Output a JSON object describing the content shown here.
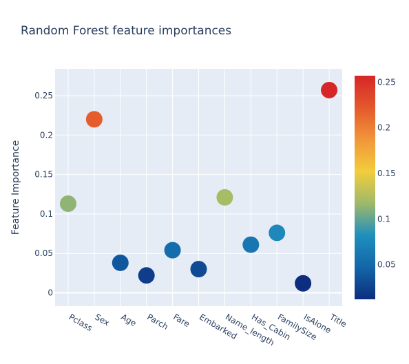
{
  "chart_data": {
    "type": "scatter",
    "title": "Random Forest feature importances",
    "ylabel": "Feature Importance",
    "xlabel": "",
    "categories": [
      "Pclass",
      "Sex",
      "Age",
      "Parch",
      "Fare",
      "Embarked",
      "Name_length",
      "Has_Cabin",
      "FamilySize",
      "IsAlone",
      "Title"
    ],
    "values": [
      0.113,
      0.22,
      0.038,
      0.022,
      0.054,
      0.03,
      0.121,
      0.061,
      0.076,
      0.012,
      0.257
    ],
    "ylim": [
      -0.017,
      0.284
    ],
    "yticks": [
      0,
      0.05,
      0.1,
      0.15,
      0.2,
      0.25
    ],
    "ytick_labels": [
      "0",
      "0.05",
      "0.1",
      "0.15",
      "0.2",
      "0.25"
    ],
    "grid": true,
    "colorscale": [
      "#0d2d7e",
      "#1366a8",
      "#1f8fbd",
      "#9eb96a",
      "#f2cd3c",
      "#f1963a",
      "#e4582c",
      "#d62628"
    ],
    "colorbar": {
      "range": [
        0.012,
        0.257
      ],
      "ticks": [
        0.05,
        0.1,
        0.15,
        0.2,
        0.25
      ],
      "tick_labels": [
        "0.05",
        "0.1",
        "0.15",
        "0.2",
        "0.25"
      ]
    },
    "colors": {
      "plot_bg": "#e5ecf6",
      "grid": "#ffffff",
      "text": "#2a3f5f"
    }
  }
}
